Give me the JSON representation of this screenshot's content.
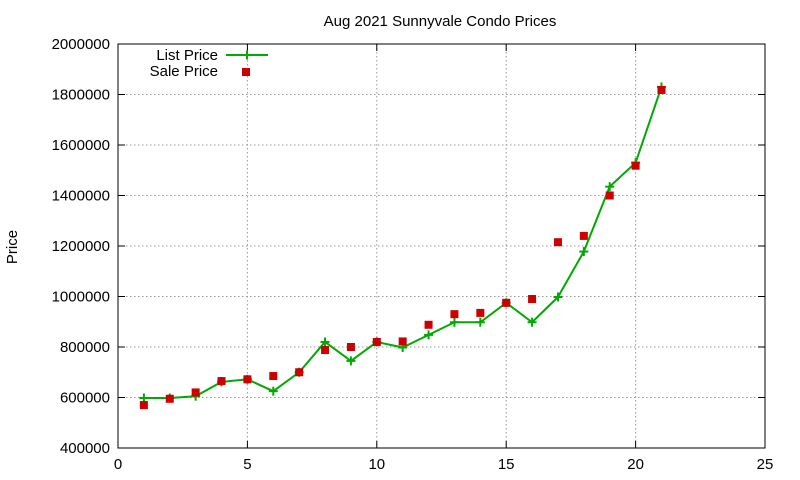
{
  "chart_data": {
    "type": "line",
    "title": "Aug 2021 Sunnyvale Condo Prices",
    "xlabel": "",
    "ylabel": "Price",
    "xlim": [
      0,
      25
    ],
    "ylim": [
      400000,
      2000000
    ],
    "x_ticks": [
      0,
      5,
      10,
      15,
      20,
      25
    ],
    "y_ticks": [
      400000,
      600000,
      800000,
      1000000,
      1200000,
      1400000,
      1600000,
      1800000,
      2000000
    ],
    "grid": true,
    "legend_position": "top-left",
    "x": [
      1,
      2,
      3,
      4,
      5,
      6,
      7,
      8,
      9,
      10,
      11,
      12,
      13,
      14,
      15,
      16,
      17,
      18,
      19,
      20,
      21
    ],
    "series": [
      {
        "name": "List Price",
        "style": "line-with-plus-markers",
        "color": "#00aa00",
        "values": [
          598000,
          598000,
          605000,
          662000,
          672000,
          625000,
          700000,
          820000,
          745000,
          820000,
          798000,
          848000,
          898000,
          898000,
          975000,
          898000,
          998000,
          1178000,
          1435000,
          1530000,
          1830000
        ]
      },
      {
        "name": "Sale Price",
        "style": "square-markers",
        "color": "#cc0000",
        "values": [
          570000,
          595000,
          620000,
          665000,
          672000,
          685000,
          700000,
          788000,
          800000,
          820000,
          822000,
          888000,
          930000,
          935000,
          975000,
          990000,
          1215000,
          1240000,
          1400000,
          1518000,
          1818000
        ]
      }
    ]
  }
}
